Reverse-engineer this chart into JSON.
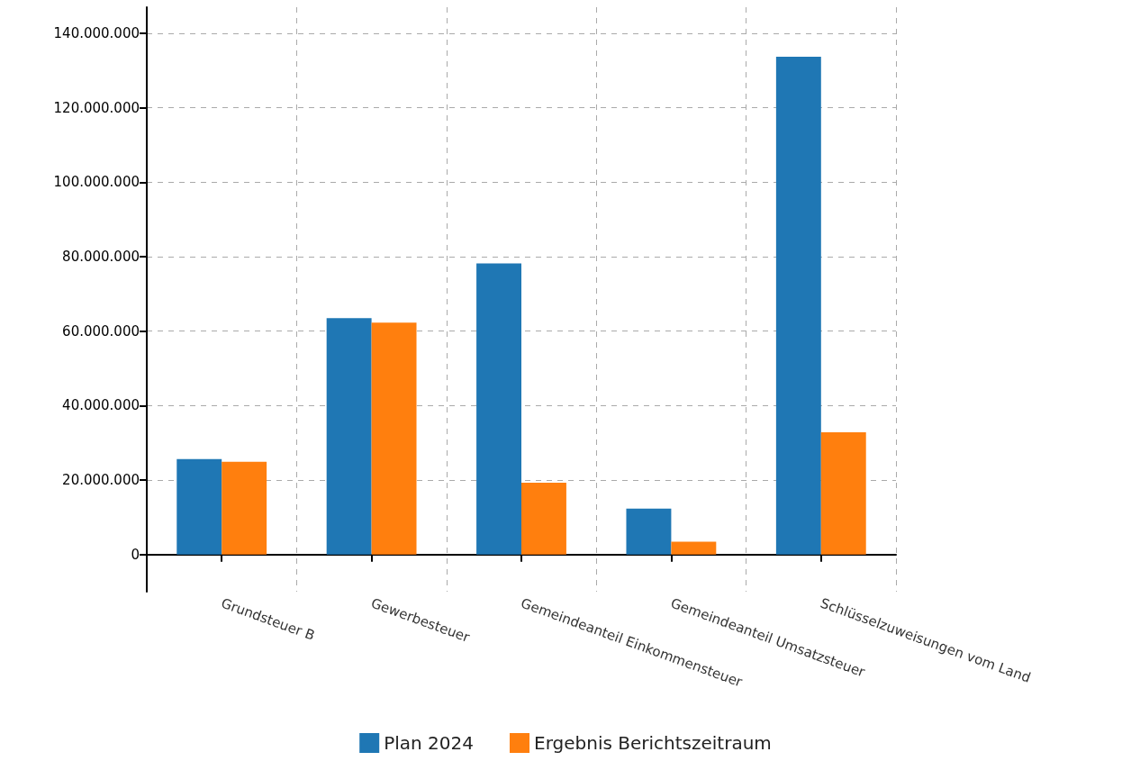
{
  "chart_data": {
    "type": "bar",
    "categories": [
      "Grundsteuer B",
      "Gewerbesteuer",
      "Gemeindeanteil Einkommensteuer",
      "Gemeindeanteil Umsatzsteuer",
      "Schlüsselzuweisungen vom Land"
    ],
    "series": [
      {
        "name": "Plan 2024",
        "color": "#1f77b4",
        "values": [
          25600000,
          63500000,
          78200000,
          12300000,
          133700000
        ]
      },
      {
        "name": "Ergebnis Berichtszeitraum",
        "color": "#ff7f0e",
        "values": [
          24900000,
          62300000,
          19300000,
          3400000,
          32800000
        ]
      }
    ],
    "ylim": [
      -10000000,
      147000000
    ],
    "yticks": [
      {
        "value": 0,
        "label": "0"
      },
      {
        "value": 20000000,
        "label": "20.000.000"
      },
      {
        "value": 40000000,
        "label": "40.000.000"
      },
      {
        "value": 60000000,
        "label": "60.000.000"
      },
      {
        "value": 80000000,
        "label": "80.000.000"
      },
      {
        "value": 100000000,
        "label": "100.000.000"
      },
      {
        "value": 120000000,
        "label": "120.000.000"
      },
      {
        "value": 140000000,
        "label": "140.000.000"
      }
    ],
    "grid": true,
    "legend": "bottom"
  }
}
